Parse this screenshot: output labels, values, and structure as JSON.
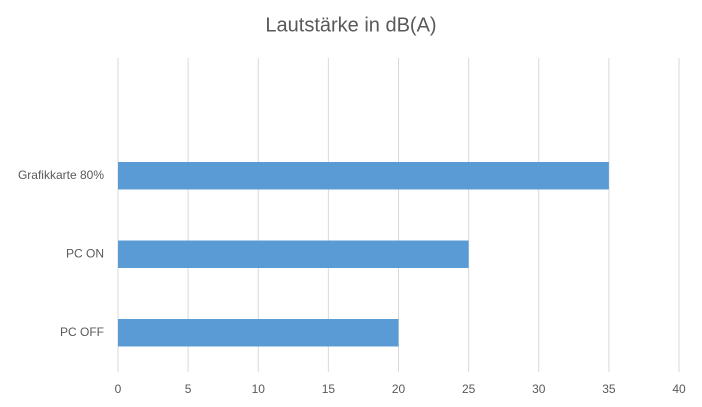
{
  "chart_data": {
    "type": "barh",
    "title": "Lautstärke in dB(A)",
    "categories": [
      null,
      "Grafikkarte 80%",
      "PC ON",
      "PC OFF"
    ],
    "values": [
      null,
      35,
      25,
      20
    ],
    "color": "#5b9bd5",
    "xlim": [
      0,
      40
    ],
    "xticks": [
      0,
      5,
      10,
      15,
      20,
      25,
      30,
      35,
      40
    ],
    "grid": true
  }
}
